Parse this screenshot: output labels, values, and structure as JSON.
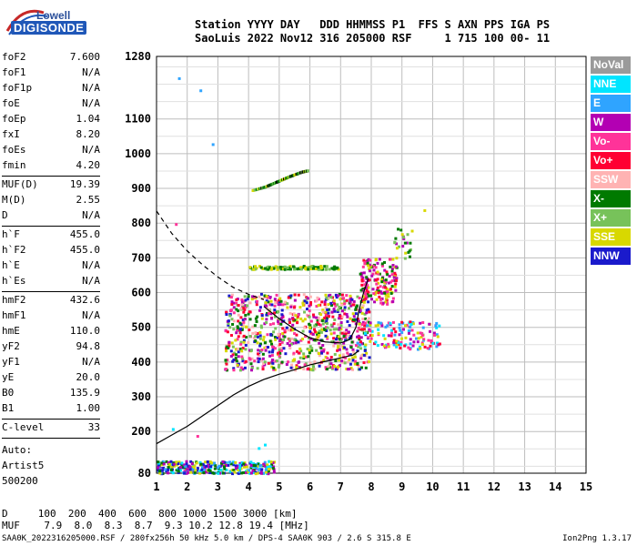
{
  "logo": {
    "line1": "Lowell",
    "line2": "DIGISONDE"
  },
  "header": {
    "row1": "Station YYYY DAY   DDD HHMMSS P1  FFS S AXN PPS IGA PS",
    "row2": "SaoLuis 2022 Nov12 316 205000 RSF     1 715 100 00- 11"
  },
  "params": [
    [
      {
        "k": "foF2",
        "v": "7.600"
      },
      {
        "k": "foF1",
        "v": "N/A"
      },
      {
        "k": "foF1p",
        "v": "N/A"
      },
      {
        "k": "foE",
        "v": "N/A"
      },
      {
        "k": "foEp",
        "v": "1.04"
      },
      {
        "k": "fxI",
        "v": "8.20"
      },
      {
        "k": "foEs",
        "v": "N/A"
      },
      {
        "k": "fmin",
        "v": "4.20"
      }
    ],
    [
      {
        "k": "MUF(D)",
        "v": "19.39"
      },
      {
        "k": "M(D)",
        "v": "2.55"
      },
      {
        "k": "D",
        "v": "N/A"
      }
    ],
    [
      {
        "k": "h`F",
        "v": "455.0"
      },
      {
        "k": "h`F2",
        "v": "455.0"
      },
      {
        "k": "h`E",
        "v": "N/A"
      },
      {
        "k": "h`Es",
        "v": "N/A"
      }
    ],
    [
      {
        "k": "hmF2",
        "v": "432.6"
      },
      {
        "k": "hmF1",
        "v": "N/A"
      },
      {
        "k": "hmE",
        "v": "110.0"
      },
      {
        "k": "yF2",
        "v": "94.8"
      },
      {
        "k": "yF1",
        "v": "N/A"
      },
      {
        "k": "yE",
        "v": "20.0"
      },
      {
        "k": "B0",
        "v": "135.9"
      },
      {
        "k": "B1",
        "v": "1.00"
      }
    ],
    [
      {
        "k": "C-level",
        "v": "33"
      }
    ]
  ],
  "autoscale": [
    "Auto:",
    "Artist5",
    "500200"
  ],
  "legend": [
    {
      "label": "NoVal",
      "color": "#9a9a9a"
    },
    {
      "label": "NNE",
      "color": "#00e5ff"
    },
    {
      "label": "E",
      "color": "#2fa4ff"
    },
    {
      "label": "W",
      "color": "#b300b3"
    },
    {
      "label": "Vo-",
      "color": "#ff3399"
    },
    {
      "label": "Vo+",
      "color": "#ff0033"
    },
    {
      "label": "SSW",
      "color": "#ffb3b3"
    },
    {
      "label": "X-",
      "color": "#007a00"
    },
    {
      "label": "X+",
      "color": "#77c25a"
    },
    {
      "label": "SSE",
      "color": "#d8d800"
    },
    {
      "label": "NNW",
      "color": "#1a1acc"
    }
  ],
  "dmuf": {
    "d_row": "D     100  200  400  600  800 1000 1500 3000 [km]",
    "muf_row": "MUF    7.9  8.0  8.3  8.7  9.3 10.2 12.8 19.4 [MHz]"
  },
  "footer": {
    "left": "SAA0K_2022316205000.RSF / 280fx256h 50 kHz 5.0 km / DPS-4 SAA0K 903 / 2.6 S 315.8 E",
    "right": "Ion2Png 1.3.17"
  },
  "chart_data": {
    "type": "scatter",
    "x_ticks": [
      "1",
      "2",
      "3",
      "4",
      "5",
      "6",
      "7",
      "8",
      "9",
      "10",
      "11",
      "12",
      "13",
      "14",
      "15"
    ],
    "y_ticks": [
      "80",
      "200",
      "300",
      "400",
      "500",
      "600",
      "700",
      "800",
      "900",
      "1000",
      "1100",
      "1280"
    ],
    "xlim": [
      1,
      15
    ],
    "ylim": [
      80,
      1280
    ],
    "grid": true,
    "echo_regions": [
      {
        "xmin": 3.2,
        "xmax": 7.9,
        "ymin": 380,
        "ymax": 600,
        "n": 900,
        "colors": [
          "#b300b3",
          "#ff3399",
          "#ff0033",
          "#007a00",
          "#d8d800",
          "#ffb3b3",
          "#1a1acc",
          "#77c25a"
        ]
      },
      {
        "xmin": 7.5,
        "xmax": 10.2,
        "ymin": 440,
        "ymax": 520,
        "n": 150,
        "colors": [
          "#ff3399",
          "#ff0033",
          "#b300b3",
          "#2fa4ff",
          "#00e5ff",
          "#d8d800"
        ]
      },
      {
        "xmin": 7.6,
        "xmax": 8.8,
        "ymin": 570,
        "ymax": 700,
        "n": 170,
        "colors": [
          "#d8d800",
          "#ff3399",
          "#ff0033",
          "#007a00",
          "#b300b3"
        ]
      },
      {
        "xmin": 4.0,
        "xmax": 6.9,
        "ymin": 670,
        "ymax": 680,
        "n": 120,
        "colors": [
          "#d8d800",
          "#77c25a",
          "#007a00"
        ]
      },
      {
        "xmin": 1.0,
        "xmax": 4.8,
        "ymin": 82,
        "ymax": 118,
        "n": 320,
        "colors": [
          "#2fa4ff",
          "#00e5ff",
          "#1a1acc",
          "#007a00",
          "#d8d800",
          "#b300b3"
        ]
      },
      {
        "xmin": 8.7,
        "xmax": 9.3,
        "ymin": 700,
        "ymax": 790,
        "n": 25,
        "colors": [
          "#007a00",
          "#b300b3",
          "#d8d800",
          "#77c25a"
        ]
      },
      {
        "xmin": 4.8,
        "xmax": 6.4,
        "ymin": 60,
        "ymax": 60,
        "n": 0,
        "colors": []
      }
    ],
    "band_900": [
      [
        4.1,
        895
      ],
      [
        4.5,
        905
      ],
      [
        4.9,
        920
      ],
      [
        5.3,
        935
      ],
      [
        5.7,
        948
      ],
      [
        5.9,
        952
      ]
    ],
    "scatter_points": [
      [
        1.7,
        1220,
        "#2fa4ff"
      ],
      [
        2.4,
        1185,
        "#2fa4ff"
      ],
      [
        2.8,
        1030,
        "#2fa4ff"
      ],
      [
        1.6,
        800,
        "#ff3399"
      ],
      [
        9.7,
        840,
        "#d8d800"
      ],
      [
        1.5,
        210,
        "#00e5ff"
      ],
      [
        2.3,
        190,
        "#ff3399"
      ],
      [
        4.3,
        155,
        "#00e5ff"
      ],
      [
        4.5,
        165,
        "#00e5ff"
      ]
    ],
    "profile_curve": [
      [
        1.0,
        165
      ],
      [
        1.5,
        190
      ],
      [
        2.0,
        215
      ],
      [
        2.5,
        245
      ],
      [
        3.0,
        275
      ],
      [
        3.5,
        305
      ],
      [
        4.0,
        330
      ],
      [
        4.5,
        350
      ],
      [
        5.0,
        365
      ],
      [
        5.5,
        378
      ],
      [
        6.0,
        392
      ],
      [
        6.5,
        402
      ],
      [
        7.0,
        412
      ],
      [
        7.4,
        420
      ],
      [
        7.6,
        433
      ]
    ],
    "trace_curve": [
      [
        4.5,
        560
      ],
      [
        5.0,
        525
      ],
      [
        5.5,
        495
      ],
      [
        6.0,
        470
      ],
      [
        6.5,
        458
      ],
      [
        7.0,
        455
      ],
      [
        7.3,
        465
      ],
      [
        7.5,
        500
      ],
      [
        7.6,
        550
      ],
      [
        7.75,
        600
      ],
      [
        7.9,
        640
      ]
    ],
    "dashed_curve": [
      [
        1.0,
        835
      ],
      [
        1.5,
        770
      ],
      [
        2.0,
        720
      ],
      [
        2.5,
        680
      ],
      [
        3.0,
        645
      ],
      [
        3.5,
        615
      ],
      [
        4.0,
        595
      ],
      [
        4.5,
        580
      ]
    ]
  }
}
